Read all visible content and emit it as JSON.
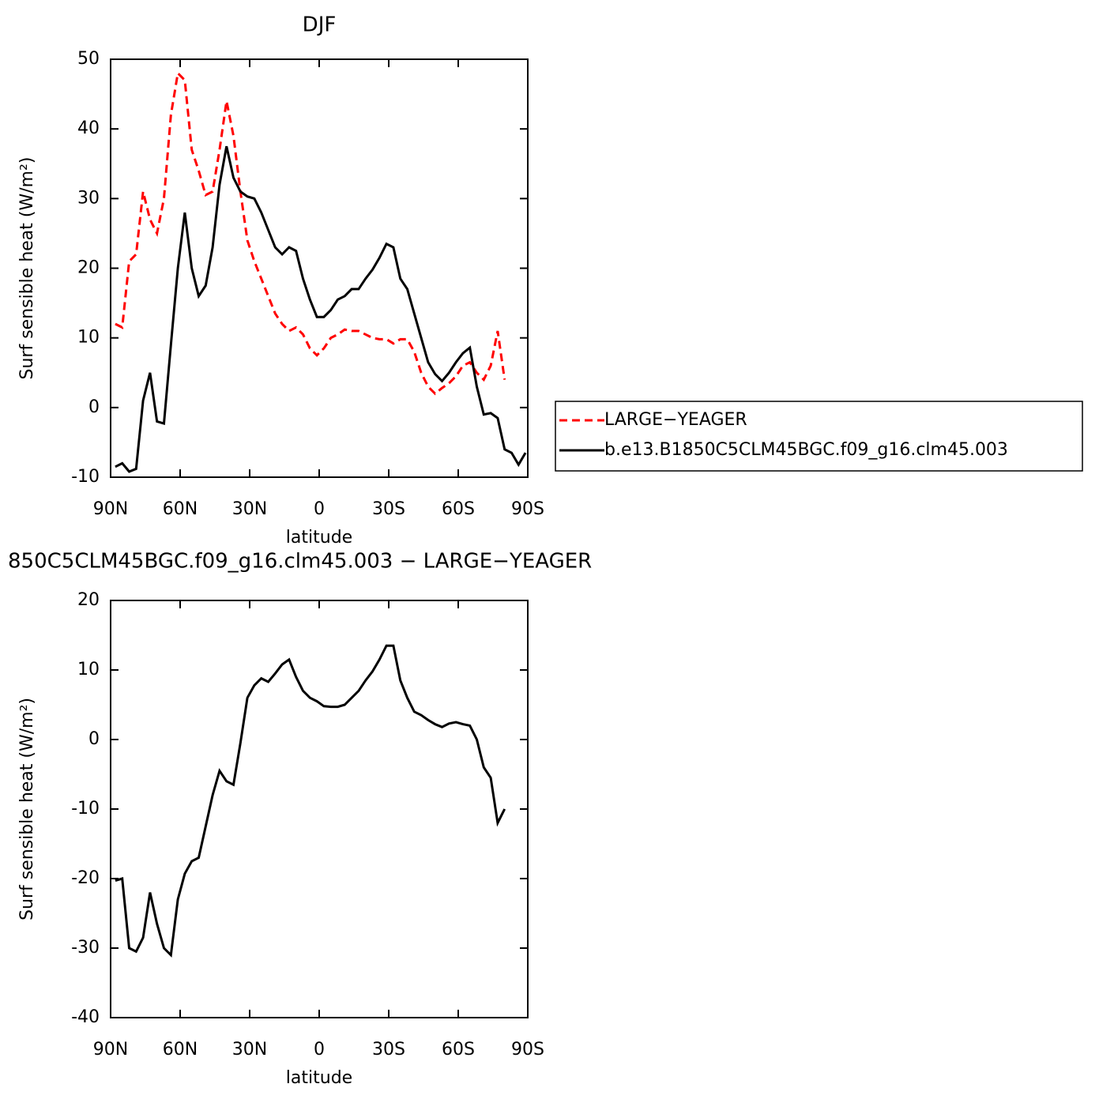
{
  "chart_data": [
    {
      "type": "line",
      "title": "DJF",
      "xlabel": "latitude",
      "ylabel": "Surf sensible heat (W/m²)",
      "x": [
        88,
        85,
        82,
        79,
        76,
        73,
        70,
        67,
        64,
        61,
        58,
        55,
        52,
        49,
        46,
        43,
        40,
        37,
        34,
        31,
        28,
        25,
        22,
        19,
        16,
        13,
        10,
        7,
        4,
        1,
        -2,
        -5,
        -8,
        -11,
        -14,
        -17,
        -20,
        -23,
        -26,
        -29,
        -32,
        -35,
        -38,
        -41,
        -44,
        -47,
        -50,
        -53,
        -56,
        -59,
        -62,
        -65,
        -68,
        -71,
        -74,
        -77,
        -80,
        -83,
        -86,
        -89
      ],
      "series": [
        {
          "name": "LARGE−YEAGER",
          "color": "#ff0000",
          "dashed": true,
          "values": [
            12,
            11.5,
            21,
            22,
            31,
            27,
            25,
            30,
            42,
            48,
            47,
            37,
            34,
            30.5,
            31,
            37,
            44,
            39,
            31,
            24,
            21,
            18.5,
            16,
            13.5,
            12,
            11,
            11.5,
            10.5,
            8.5,
            7.5,
            8.5,
            10,
            10.5,
            11.2,
            11,
            11,
            10.5,
            10,
            9.8,
            9.8,
            9.2,
            9.8,
            9.8,
            8,
            5,
            3,
            2,
            2.8,
            3.5,
            4.5,
            6,
            6.5,
            5,
            4,
            6,
            11,
            4,
            null,
            null,
            null
          ]
        },
        {
          "name": "b.e13.B1850C5CLM45BGC.f09_g16.clm45.003",
          "color": "#000000",
          "dashed": false,
          "values": [
            -8.5,
            -8,
            -9.2,
            -8.8,
            1,
            5,
            -2,
            -2.3,
            9,
            20,
            28,
            20,
            16,
            17.5,
            23,
            32,
            37.5,
            33,
            31,
            30.3,
            30,
            28,
            25.5,
            23,
            22,
            23,
            22.5,
            18.5,
            15.5,
            13,
            13,
            14,
            15.5,
            16,
            17,
            17,
            18.5,
            19.8,
            21.5,
            23.5,
            23,
            18.5,
            17,
            13.5,
            10,
            6.5,
            4.8,
            3.8,
            5,
            6.5,
            7.8,
            8.6,
            3,
            -1,
            -0.8,
            -1.5,
            -6,
            -6.5,
            -8.2,
            -6.5
          ]
        }
      ],
      "xlim": [
        90,
        -90
      ],
      "ylim": [
        -10,
        50
      ],
      "xticks": [
        {
          "value": 90,
          "label": "90N"
        },
        {
          "value": 60,
          "label": "60N"
        },
        {
          "value": 30,
          "label": "30N"
        },
        0,
        {
          "value": -30,
          "label": "30S"
        },
        {
          "value": -60,
          "label": "60S"
        },
        {
          "value": -90,
          "label": "90S"
        }
      ],
      "yticks": [
        -10,
        0,
        10,
        20,
        30,
        40,
        50
      ],
      "legend": "right"
    },
    {
      "type": "line",
      "title": "850C5CLM45BGC.f09_g16.clm45.003 − LARGE−YEAGER",
      "xlabel": "latitude",
      "ylabel": "Surf sensible heat (W/m²)",
      "x": [
        88,
        85,
        82,
        79,
        76,
        73,
        70,
        67,
        64,
        61,
        58,
        55,
        52,
        49,
        46,
        43,
        40,
        37,
        34,
        31,
        28,
        25,
        22,
        19,
        16,
        13,
        10,
        7,
        4,
        1,
        -2,
        -5,
        -8,
        -11,
        -14,
        -17,
        -20,
        -23,
        -26,
        -29,
        -32,
        -35,
        -38,
        -41,
        -44,
        -47,
        -50,
        -53,
        -56,
        -59,
        -62,
        -65,
        -68,
        -71,
        -74,
        -77,
        -80
      ],
      "series": [
        {
          "color": "#000000",
          "dashed": false,
          "values": [
            -20.3,
            -20,
            -30,
            -30.5,
            -28.5,
            -22,
            -26.5,
            -30,
            -31,
            -23,
            -19.3,
            -17.5,
            -17,
            -12.5,
            -8,
            -4.5,
            -6,
            -6.5,
            -0.5,
            6,
            7.8,
            8.8,
            8.3,
            9.5,
            10.8,
            11.5,
            9,
            7,
            6,
            5.5,
            4.8,
            4.7,
            4.7,
            5,
            6,
            7,
            8.5,
            9.8,
            11.5,
            13.5,
            13.5,
            8.5,
            6,
            4,
            3.5,
            2.8,
            2.2,
            1.8,
            2.3,
            2.5,
            2.2,
            2,
            0,
            -4,
            -5.5,
            -12,
            -10
          ]
        }
      ],
      "xlim": [
        90,
        -90
      ],
      "ylim": [
        -40,
        20
      ],
      "xticks": [
        {
          "value": 90,
          "label": "90N"
        },
        {
          "value": 60,
          "label": "60N"
        },
        {
          "value": 30,
          "label": "30N"
        },
        0,
        {
          "value": -30,
          "label": "30S"
        },
        {
          "value": -60,
          "label": "60S"
        },
        {
          "value": -90,
          "label": "90S"
        }
      ],
      "yticks": [
        -40,
        -30,
        -20,
        -10,
        0,
        10,
        20
      ]
    }
  ]
}
